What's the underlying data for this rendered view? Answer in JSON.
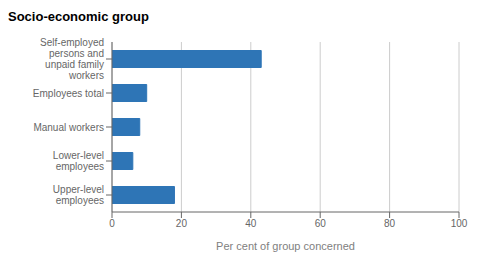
{
  "chart_data": {
    "type": "bar",
    "orientation": "horizontal",
    "title": "Socio-economic group",
    "xlabel": "Per cent of group concerned",
    "categories": [
      "Upper-level\nemployees",
      "Lower-level\nemployees",
      "Manual workers",
      "Employees total",
      "Self-employed\npersons and\nunpaid family\nworkers"
    ],
    "values": [
      18,
      6,
      8,
      10,
      43
    ],
    "color": "#2E75B6",
    "xlim": [
      0,
      100
    ],
    "xticks": [
      0,
      20,
      40,
      60,
      80,
      100
    ],
    "grid": true
  }
}
